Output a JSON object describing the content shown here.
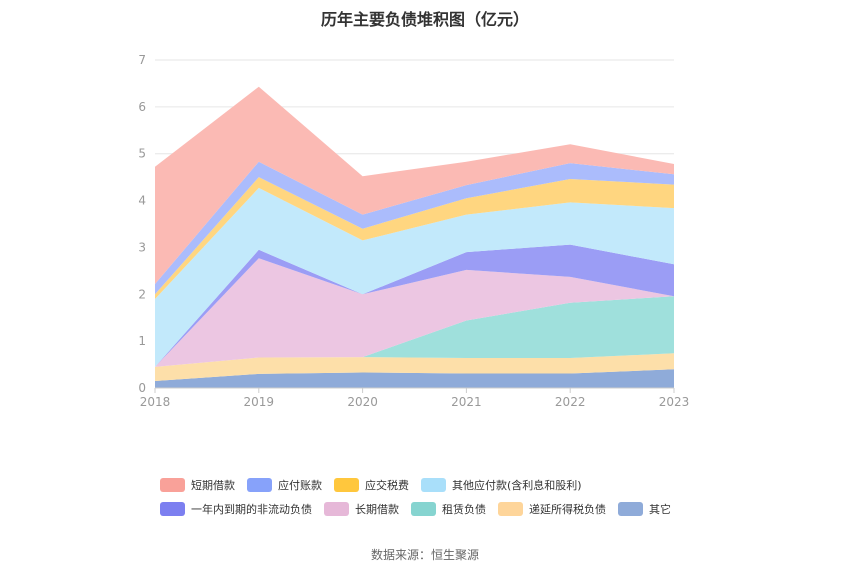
{
  "title": "历年主要负债堆积图（亿元）",
  "source": "数据来源：恒生聚源",
  "chart_data": {
    "type": "area",
    "stacked": true,
    "categories": [
      "2018",
      "2019",
      "2020",
      "2021",
      "2022",
      "2023"
    ],
    "ylim": [
      0,
      7
    ],
    "yticks": [
      0,
      1,
      2,
      3,
      4,
      5,
      6,
      7
    ],
    "grid": true,
    "legend_position": "bottom",
    "series": [
      {
        "name": "其它",
        "color": "#8fabd9",
        "values": [
          0.15,
          0.3,
          0.33,
          0.31,
          0.31,
          0.4
        ]
      },
      {
        "name": "递延所得税负债",
        "color": "#fddfa9",
        "values": [
          0.3,
          0.35,
          0.33,
          0.33,
          0.33,
          0.34
        ]
      },
      {
        "name": "租赁负债",
        "color": "#9fe0dc",
        "values": [
          0.0,
          0.0,
          0.0,
          0.8,
          1.18,
          1.22
        ]
      },
      {
        "name": "长期借款",
        "color": "#ecc6e2",
        "values": [
          0.0,
          2.12,
          1.34,
          1.08,
          0.55,
          0.0
        ]
      },
      {
        "name": "一年内到期的非流动负债",
        "color": "#9b9df5",
        "values": [
          0.0,
          0.18,
          0.0,
          0.38,
          0.69,
          0.68
        ]
      },
      {
        "name": "其他应付款(含利息和股利)",
        "color": "#c2e9fb",
        "values": [
          1.45,
          1.32,
          1.15,
          0.8,
          0.9,
          1.2
        ]
      },
      {
        "name": "应交税费",
        "color": "#ffd680",
        "values": [
          0.1,
          0.23,
          0.25,
          0.35,
          0.5,
          0.5
        ]
      },
      {
        "name": "应付账款",
        "color": "#abbcfc",
        "values": [
          0.22,
          0.33,
          0.3,
          0.28,
          0.34,
          0.22
        ]
      },
      {
        "name": "短期借款",
        "color": "#fbbab4",
        "values": [
          2.5,
          1.6,
          0.82,
          0.5,
          0.4,
          0.22
        ]
      }
    ]
  },
  "legend": {
    "row1": [
      {
        "name": "短期借款",
        "color": "#f9a199"
      },
      {
        "name": "应付账款",
        "color": "#87a2fa"
      },
      {
        "name": "应交税费",
        "color": "#ffc73d"
      },
      {
        "name": "其他应付款(含利息和股利)",
        "color": "#a9dffa"
      }
    ],
    "row2": [
      {
        "name": "一年内到期的非流动负债",
        "color": "#7c7ff0"
      },
      {
        "name": "长期借款",
        "color": "#e6b8d8"
      },
      {
        "name": "租赁负债",
        "color": "#86d4d0"
      },
      {
        "name": "递延所得税负债",
        "color": "#fed59a"
      },
      {
        "name": "其它",
        "color": "#8fabd9"
      }
    ]
  }
}
